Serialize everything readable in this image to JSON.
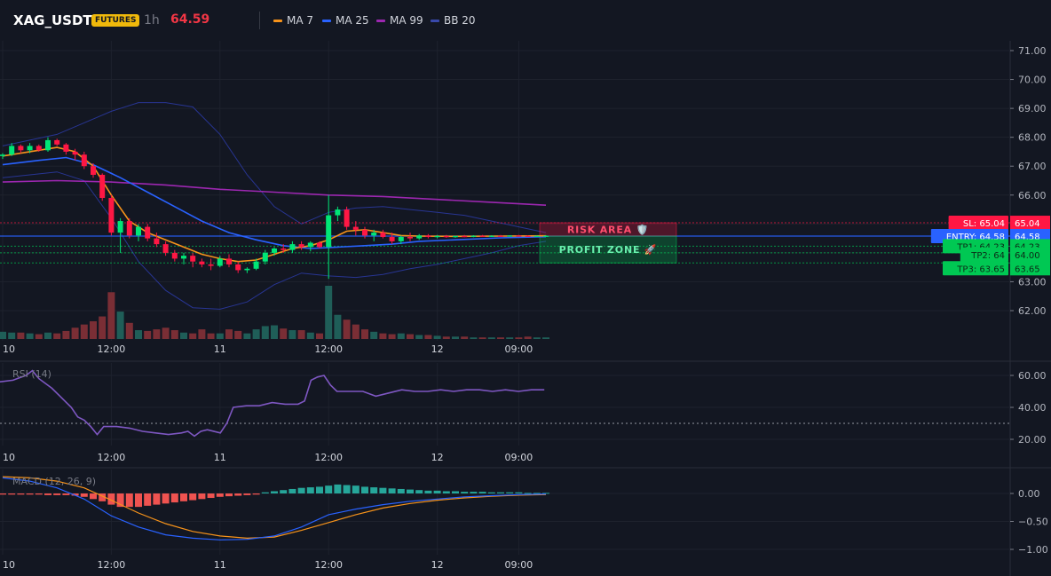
{
  "header": {
    "symbol": "XAG_USDT",
    "badge": "FUTURES",
    "interval": "1h",
    "price": "64.59",
    "legend": [
      {
        "label": "MA 7",
        "color": "#f7931a"
      },
      {
        "label": "MA 25",
        "color": "#2962ff"
      },
      {
        "label": "MA 99",
        "color": "#9c27b0"
      },
      {
        "label": "BB 20",
        "color": "#283593"
      }
    ]
  },
  "colors": {
    "up": "#26a69a",
    "down": "#ef5350",
    "candle_up": "#00e676",
    "candle_down": "#ff1744",
    "bg": "#131722",
    "grid": "#1e222d",
    "rsi": "#7e57c2",
    "macd": "#2962ff",
    "signal": "#f7931a"
  },
  "chart_data": [
    {
      "type": "candlestick",
      "name": "price",
      "y_ticks": [
        "71.00",
        "70.00",
        "69.00",
        "68.00",
        "67.00",
        "66.00",
        "65.00",
        "64.00",
        "63.00",
        "62.00"
      ],
      "ylim": [
        61.1,
        71.2
      ],
      "x_ticks": [
        {
          "label": "10",
          "i": 0
        },
        {
          "label": "12:00",
          "i": 12
        },
        {
          "label": "11",
          "i": 24
        },
        {
          "label": "12:00",
          "i": 36
        },
        {
          "label": "12",
          "i": 48
        },
        {
          "label": "09:00",
          "i": 57
        }
      ],
      "x_domain": [
        0,
        104
      ],
      "candles": [
        [
          67.35,
          67.45,
          67.25,
          67.4
        ],
        [
          67.4,
          67.8,
          67.35,
          67.7
        ],
        [
          67.7,
          67.75,
          67.45,
          67.55
        ],
        [
          67.55,
          67.8,
          67.45,
          67.7
        ],
        [
          67.7,
          67.75,
          67.5,
          67.55
        ],
        [
          67.55,
          68.0,
          67.5,
          67.9
        ],
        [
          67.9,
          67.95,
          67.7,
          67.75
        ],
        [
          67.75,
          67.8,
          67.4,
          67.5
        ],
        [
          67.5,
          67.6,
          67.2,
          67.4
        ],
        [
          67.4,
          67.5,
          66.9,
          67.0
        ],
        [
          67.0,
          67.1,
          66.6,
          66.7
        ],
        [
          66.7,
          66.75,
          65.8,
          65.9
        ],
        [
          65.9,
          66.0,
          64.6,
          64.7
        ],
        [
          64.7,
          65.2,
          64.0,
          65.1
        ],
        [
          65.1,
          65.2,
          64.5,
          64.6
        ],
        [
          64.6,
          65.0,
          64.4,
          64.9
        ],
        [
          64.9,
          65.0,
          64.4,
          64.5
        ],
        [
          64.5,
          64.7,
          64.2,
          64.3
        ],
        [
          64.3,
          64.4,
          63.9,
          64.0
        ],
        [
          64.0,
          64.1,
          63.7,
          63.8
        ],
        [
          63.8,
          64.0,
          63.6,
          63.9
        ],
        [
          63.9,
          64.0,
          63.5,
          63.7
        ],
        [
          63.7,
          63.8,
          63.5,
          63.6
        ],
        [
          63.6,
          63.8,
          63.4,
          63.55
        ],
        [
          63.55,
          63.9,
          63.5,
          63.8
        ],
        [
          63.8,
          63.95,
          63.5,
          63.6
        ],
        [
          63.6,
          63.7,
          63.3,
          63.4
        ],
        [
          63.4,
          63.5,
          63.3,
          63.45
        ],
        [
          63.45,
          63.8,
          63.4,
          63.7
        ],
        [
          63.7,
          64.1,
          63.6,
          64.0
        ],
        [
          64.0,
          64.2,
          63.9,
          64.15
        ],
        [
          64.15,
          64.3,
          64.0,
          64.1
        ],
        [
          64.1,
          64.4,
          64.0,
          64.3
        ],
        [
          64.3,
          64.4,
          64.1,
          64.2
        ],
        [
          64.2,
          64.4,
          64.05,
          64.35
        ],
        [
          64.35,
          64.4,
          64.15,
          64.2
        ],
        [
          64.2,
          66.0,
          63.1,
          65.3
        ],
        [
          65.3,
          65.6,
          65.1,
          65.5
        ],
        [
          65.5,
          65.6,
          64.8,
          64.9
        ],
        [
          64.9,
          65.1,
          64.6,
          64.8
        ],
        [
          64.8,
          64.9,
          64.5,
          64.6
        ],
        [
          64.6,
          64.8,
          64.4,
          64.7
        ],
        [
          64.7,
          64.8,
          64.5,
          64.55
        ],
        [
          64.55,
          64.7,
          64.3,
          64.4
        ],
        [
          64.4,
          64.6,
          64.3,
          64.55
        ],
        [
          64.55,
          64.7,
          64.4,
          64.5
        ],
        [
          64.5,
          64.65,
          64.45,
          64.6
        ],
        [
          64.6,
          64.65,
          64.5,
          64.55
        ],
        [
          64.55,
          64.62,
          64.5,
          64.58
        ],
        [
          64.58,
          64.62,
          64.52,
          64.56
        ],
        [
          64.56,
          64.6,
          64.52,
          64.58
        ],
        [
          64.58,
          64.62,
          64.54,
          64.57
        ],
        [
          64.57,
          64.61,
          64.54,
          64.59
        ],
        [
          64.59,
          64.62,
          64.55,
          64.58
        ],
        [
          64.58,
          64.61,
          64.55,
          64.59
        ],
        [
          64.59,
          64.62,
          64.56,
          64.58
        ],
        [
          64.58,
          64.61,
          64.56,
          64.6
        ],
        [
          64.6,
          64.62,
          64.57,
          64.59
        ],
        [
          64.59,
          64.61,
          64.57,
          64.58
        ],
        [
          64.58,
          64.6,
          64.56,
          64.59
        ],
        [
          64.59,
          64.61,
          64.57,
          64.59
        ]
      ],
      "volume": [
        9,
        8,
        8,
        7,
        6,
        8,
        7,
        10,
        14,
        18,
        22,
        28,
        58,
        34,
        20,
        11,
        10,
        12,
        14,
        11,
        8,
        7,
        12,
        7,
        7,
        12,
        10,
        7,
        12,
        16,
        17,
        13,
        11,
        11,
        8,
        7,
        66,
        30,
        24,
        18,
        12,
        9,
        7,
        6,
        7,
        6,
        5,
        5,
        4,
        3,
        3,
        3,
        2,
        2,
        2,
        2,
        2,
        2,
        3,
        2,
        2
      ],
      "vol_max": 66,
      "ma7": [
        [
          0,
          67.35
        ],
        [
          3,
          67.5
        ],
        [
          6,
          67.65
        ],
        [
          8,
          67.5
        ],
        [
          10,
          67.0
        ],
        [
          12,
          66.0
        ],
        [
          14,
          65.1
        ],
        [
          16,
          64.7
        ],
        [
          18,
          64.45
        ],
        [
          20,
          64.2
        ],
        [
          22,
          63.95
        ],
        [
          24,
          63.8
        ],
        [
          26,
          63.7
        ],
        [
          28,
          63.75
        ],
        [
          30,
          63.95
        ],
        [
          32,
          64.15
        ],
        [
          34,
          64.25
        ],
        [
          36,
          64.45
        ],
        [
          38,
          64.75
        ],
        [
          40,
          64.8
        ],
        [
          42,
          64.7
        ],
        [
          44,
          64.6
        ],
        [
          46,
          64.58
        ],
        [
          50,
          64.57
        ],
        [
          55,
          64.58
        ],
        [
          60,
          64.59
        ]
      ],
      "ma25": [
        [
          0,
          67.05
        ],
        [
          4,
          67.2
        ],
        [
          7,
          67.3
        ],
        [
          10,
          67.05
        ],
        [
          13,
          66.6
        ],
        [
          16,
          66.1
        ],
        [
          19,
          65.6
        ],
        [
          22,
          65.1
        ],
        [
          25,
          64.7
        ],
        [
          28,
          64.45
        ],
        [
          31,
          64.25
        ],
        [
          34,
          64.15
        ],
        [
          37,
          64.2
        ],
        [
          40,
          64.25
        ],
        [
          43,
          64.3
        ],
        [
          46,
          64.4
        ],
        [
          50,
          64.45
        ],
        [
          55,
          64.52
        ],
        [
          60,
          64.56
        ]
      ],
      "ma99": [
        [
          0,
          66.45
        ],
        [
          6,
          66.5
        ],
        [
          12,
          66.45
        ],
        [
          18,
          66.35
        ],
        [
          24,
          66.2
        ],
        [
          30,
          66.1
        ],
        [
          36,
          66.0
        ],
        [
          42,
          65.95
        ],
        [
          48,
          65.85
        ],
        [
          54,
          65.75
        ],
        [
          60,
          65.65
        ]
      ],
      "bb_upper": [
        [
          0,
          67.7
        ],
        [
          3,
          67.9
        ],
        [
          6,
          68.1
        ],
        [
          9,
          68.5
        ],
        [
          12,
          68.9
        ],
        [
          15,
          69.2
        ],
        [
          18,
          69.2
        ],
        [
          21,
          69.05
        ],
        [
          24,
          68.1
        ],
        [
          27,
          66.7
        ],
        [
          30,
          65.6
        ],
        [
          33,
          65.0
        ],
        [
          36,
          65.4
        ],
        [
          39,
          65.55
        ],
        [
          42,
          65.6
        ],
        [
          45,
          65.5
        ],
        [
          48,
          65.4
        ],
        [
          51,
          65.3
        ],
        [
          54,
          65.1
        ],
        [
          57,
          64.9
        ],
        [
          60,
          64.7
        ]
      ],
      "bb_lower": [
        [
          0,
          66.6
        ],
        [
          3,
          66.7
        ],
        [
          6,
          66.8
        ],
        [
          9,
          66.5
        ],
        [
          12,
          65.2
        ],
        [
          15,
          63.7
        ],
        [
          18,
          62.7
        ],
        [
          21,
          62.1
        ],
        [
          24,
          62.05
        ],
        [
          27,
          62.3
        ],
        [
          30,
          62.9
        ],
        [
          33,
          63.3
        ],
        [
          36,
          63.2
        ],
        [
          39,
          63.15
        ],
        [
          42,
          63.25
        ],
        [
          45,
          63.45
        ],
        [
          48,
          63.6
        ],
        [
          51,
          63.8
        ],
        [
          54,
          64.0
        ],
        [
          57,
          64.25
        ],
        [
          60,
          64.4
        ]
      ],
      "levels": [
        {
          "name": "sl",
          "text": "SL: 65.04",
          "value": 65.04,
          "value_text": "65.04",
          "color": "#ff1744"
        },
        {
          "name": "entry",
          "text": "ENTRY: 64.58",
          "value": 64.58,
          "value_text": "64.58",
          "color": "#2962ff"
        },
        {
          "name": "tp1",
          "text": "TP1: 64.23",
          "value": 64.23,
          "value_text": "64.23",
          "color": "#00c853"
        },
        {
          "name": "tp2",
          "text": "TP2: 64",
          "value": 64.0,
          "value_text": "64.00",
          "color": "#00c853"
        },
        {
          "name": "tp3",
          "text": "TP3: 63.65",
          "value": 63.65,
          "value_text": "63.65",
          "color": "#00c853"
        }
      ],
      "zones": [
        {
          "name": "risk-area",
          "label": "RISK AREA 🛡️",
          "from": 65.04,
          "to": 64.58,
          "color": "#ff1744",
          "text_color": "#ff4d6d"
        },
        {
          "name": "profit-zone",
          "label": "PROFIT ZONE 🚀",
          "from": 64.58,
          "to": 63.65,
          "color": "#00c853",
          "text_color": "#69f0ae"
        }
      ]
    },
    {
      "type": "line",
      "name": "rsi",
      "title": "RSI (14)",
      "y_ticks": [
        "60.00",
        "40.00",
        "20.00"
      ],
      "ylim": [
        15,
        68
      ],
      "reference_level": 30,
      "values": [
        [
          0,
          56
        ],
        [
          2,
          57
        ],
        [
          4,
          60
        ],
        [
          5,
          63
        ],
        [
          6,
          58
        ],
        [
          8,
          52
        ],
        [
          9,
          48
        ],
        [
          10,
          44
        ],
        [
          11,
          40
        ],
        [
          12,
          34
        ],
        [
          13,
          32
        ],
        [
          14,
          28
        ],
        [
          15,
          23
        ],
        [
          16,
          28
        ],
        [
          18,
          28
        ],
        [
          20,
          27
        ],
        [
          22,
          25
        ],
        [
          24,
          24
        ],
        [
          26,
          23
        ],
        [
          28,
          24
        ],
        [
          29,
          25
        ],
        [
          30,
          22
        ],
        [
          31,
          25
        ],
        [
          32,
          26
        ],
        [
          34,
          24
        ],
        [
          35,
          30
        ],
        [
          36,
          40
        ],
        [
          38,
          41
        ],
        [
          40,
          41
        ],
        [
          42,
          43
        ],
        [
          44,
          42
        ],
        [
          46,
          42
        ],
        [
          47,
          44
        ],
        [
          48,
          57
        ],
        [
          49,
          59
        ],
        [
          50,
          60
        ],
        [
          51,
          54
        ],
        [
          52,
          50
        ],
        [
          54,
          50
        ],
        [
          56,
          50
        ],
        [
          58,
          47
        ],
        [
          60,
          49
        ],
        [
          62,
          51
        ],
        [
          64,
          50
        ],
        [
          66,
          50
        ],
        [
          68,
          51
        ],
        [
          70,
          50
        ],
        [
          72,
          51
        ],
        [
          74,
          51
        ],
        [
          76,
          50
        ],
        [
          78,
          51
        ],
        [
          80,
          50
        ],
        [
          82,
          51
        ],
        [
          84,
          51
        ]
      ]
    },
    {
      "type": "histogram+line",
      "name": "macd",
      "title": "MACD (12, 26, 9)",
      "y_ticks": [
        "0.00",
        "−0.50",
        "−1.00"
      ],
      "ylim": [
        -1.08,
        0.22
      ],
      "histogram": [
        -0.02,
        -0.02,
        -0.02,
        -0.02,
        -0.02,
        -0.03,
        -0.03,
        -0.03,
        -0.04,
        -0.06,
        -0.1,
        -0.14,
        -0.2,
        -0.24,
        -0.24,
        -0.24,
        -0.22,
        -0.2,
        -0.18,
        -0.16,
        -0.14,
        -0.12,
        -0.1,
        -0.08,
        -0.06,
        -0.05,
        -0.04,
        -0.03,
        -0.02,
        0.02,
        0.04,
        0.06,
        0.08,
        0.1,
        0.11,
        0.12,
        0.14,
        0.16,
        0.15,
        0.14,
        0.12,
        0.11,
        0.1,
        0.09,
        0.08,
        0.07,
        0.06,
        0.05,
        0.05,
        0.04,
        0.04,
        0.03,
        0.03,
        0.03,
        0.02,
        0.02,
        0.02,
        0.02,
        0.01,
        0.01,
        0.01
      ],
      "macd_line": [
        [
          0,
          0.28
        ],
        [
          3,
          0.22
        ],
        [
          6,
          0.1
        ],
        [
          9,
          -0.1
        ],
        [
          12,
          -0.4
        ],
        [
          15,
          -0.6
        ],
        [
          18,
          -0.74
        ],
        [
          21,
          -0.8
        ],
        [
          24,
          -0.83
        ],
        [
          27,
          -0.82
        ],
        [
          30,
          -0.76
        ],
        [
          33,
          -0.6
        ],
        [
          36,
          -0.38
        ],
        [
          39,
          -0.28
        ],
        [
          42,
          -0.2
        ],
        [
          45,
          -0.14
        ],
        [
          48,
          -0.1
        ],
        [
          51,
          -0.06
        ],
        [
          54,
          -0.04
        ],
        [
          57,
          -0.02
        ],
        [
          60,
          -0.01
        ]
      ],
      "signal_line": [
        [
          0,
          0.3
        ],
        [
          3,
          0.28
        ],
        [
          6,
          0.22
        ],
        [
          9,
          0.1
        ],
        [
          12,
          -0.12
        ],
        [
          15,
          -0.35
        ],
        [
          18,
          -0.54
        ],
        [
          21,
          -0.68
        ],
        [
          24,
          -0.76
        ],
        [
          27,
          -0.8
        ],
        [
          30,
          -0.78
        ],
        [
          33,
          -0.66
        ],
        [
          36,
          -0.52
        ],
        [
          39,
          -0.38
        ],
        [
          42,
          -0.26
        ],
        [
          45,
          -0.18
        ],
        [
          48,
          -0.12
        ],
        [
          51,
          -0.08
        ],
        [
          54,
          -0.05
        ],
        [
          57,
          -0.03
        ],
        [
          60,
          -0.02
        ]
      ]
    }
  ]
}
